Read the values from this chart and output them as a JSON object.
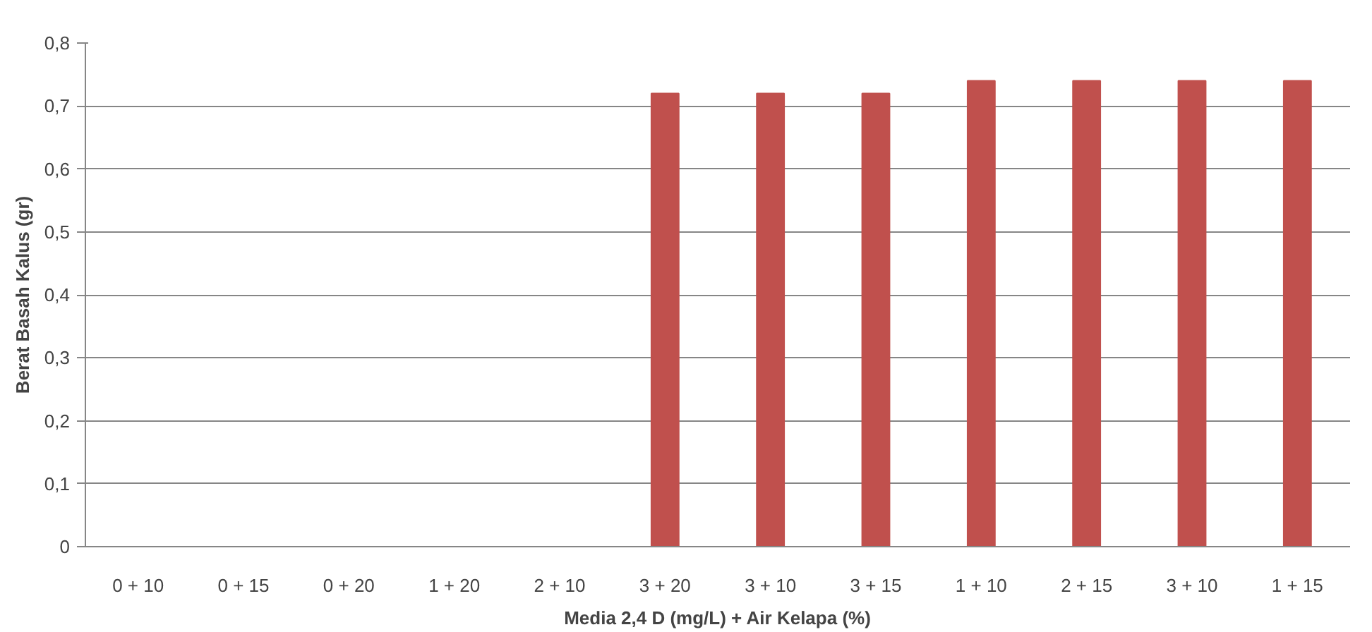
{
  "chart_data": {
    "type": "bar",
    "xlabel": "Media 2,4 D (mg/L) + Air Kelapa (%)",
    "ylabel": "Berat Basah Kalus (gr)",
    "categories": [
      "0 + 10",
      "0 + 15",
      "0 + 20",
      "1 + 20",
      "2 + 10",
      "3 + 20",
      "3 + 10",
      "3 + 15",
      "1 + 10",
      "2 + 15",
      "3 + 10",
      "1 + 15"
    ],
    "values": [
      0,
      0,
      0,
      0,
      0,
      0.72,
      0.72,
      0.72,
      0.74,
      0.74,
      0.74,
      0.74
    ],
    "color": "#c0504d",
    "ylim": [
      0,
      0.8
    ],
    "yticks": [
      0,
      {
        "value": 0.1,
        "label": "0,1"
      },
      {
        "value": 0.2,
        "label": "0,2"
      },
      {
        "value": 0.3,
        "label": "0,3"
      },
      {
        "value": 0.4,
        "label": "0,4"
      },
      {
        "value": 0.5,
        "label": "0,5"
      },
      {
        "value": 0.6,
        "label": "0,6"
      },
      {
        "value": 0.7,
        "label": "0,7"
      },
      {
        "value": 0.8,
        "label": "0,8"
      }
    ],
    "grid": "y"
  }
}
